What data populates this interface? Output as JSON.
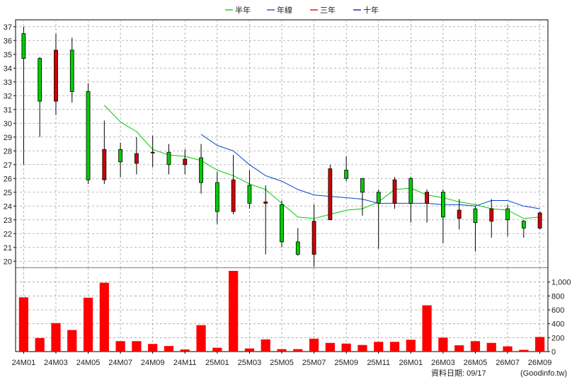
{
  "chart_data": {
    "type": "candlestick",
    "legend": [
      {
        "name": "半年",
        "color": "#00cc00"
      },
      {
        "name": "年線",
        "color": "#0044cc"
      },
      {
        "name": "三年",
        "color": "#cc0000"
      },
      {
        "name": "十年",
        "color": "#330099"
      }
    ],
    "x_tick_labels": [
      "24M01",
      "24M03",
      "24M05",
      "24M07",
      "24M09",
      "24M11",
      "25M01",
      "25M03",
      "25M05",
      "25M07",
      "25M09",
      "25M11",
      "26M01",
      "26M03",
      "26M05",
      "26M07",
      "26M09"
    ],
    "price_axis": {
      "ylim": [
        19.5,
        37.5
      ],
      "ticks": [
        20,
        21,
        22,
        23,
        24,
        25,
        26,
        27,
        28,
        29,
        30,
        31,
        32,
        33,
        34,
        35,
        36,
        37
      ]
    },
    "volume_axis": {
      "ylim": [
        0,
        1200
      ],
      "ticks": [
        0,
        200,
        400,
        600,
        800,
        1000
      ],
      "tick_labels": [
        "0",
        "200",
        "400",
        "600",
        "800",
        "1,000"
      ]
    },
    "candles": [
      {
        "x": "24M01",
        "open": 34.7,
        "high": 37.0,
        "low": 27.0,
        "close": 36.5,
        "color": "green"
      },
      {
        "x": "24M02",
        "open": 31.6,
        "high": 34.8,
        "low": 29.0,
        "close": 34.7,
        "color": "green"
      },
      {
        "x": "24M03",
        "open": 35.3,
        "high": 36.5,
        "low": 30.6,
        "close": 31.6,
        "color": "red"
      },
      {
        "x": "24M04",
        "open": 32.3,
        "high": 36.2,
        "low": 31.5,
        "close": 35.3,
        "color": "green"
      },
      {
        "x": "24M05",
        "open": 25.9,
        "high": 32.9,
        "low": 25.6,
        "close": 32.3,
        "color": "green"
      },
      {
        "x": "24M06",
        "open": 28.1,
        "high": 30.2,
        "low": 25.6,
        "close": 25.9,
        "color": "red"
      },
      {
        "x": "24M07",
        "open": 27.2,
        "high": 28.6,
        "low": 26.1,
        "close": 28.1,
        "color": "green"
      },
      {
        "x": "24M08",
        "open": 27.8,
        "high": 29.0,
        "low": 26.3,
        "close": 27.1,
        "color": "red"
      },
      {
        "x": "24M09",
        "open": 27.9,
        "high": 29.1,
        "low": 26.8,
        "close": 27.9,
        "color": "red"
      },
      {
        "x": "24M10",
        "open": 27.0,
        "high": 28.5,
        "low": 26.3,
        "close": 27.9,
        "color": "green"
      },
      {
        "x": "24M11",
        "open": 27.4,
        "high": 28.1,
        "low": 26.3,
        "close": 27.0,
        "color": "red"
      },
      {
        "x": "24M12",
        "open": 25.7,
        "high": 28.5,
        "low": 24.9,
        "close": 27.5,
        "color": "green"
      },
      {
        "x": "25M01",
        "open": 23.6,
        "high": 26.5,
        "low": 22.7,
        "close": 25.7,
        "color": "green"
      },
      {
        "x": "25M02",
        "open": 25.9,
        "high": 27.7,
        "low": 23.4,
        "close": 23.6,
        "color": "red"
      },
      {
        "x": "25M03",
        "open": 24.2,
        "high": 26.6,
        "low": 23.8,
        "close": 25.5,
        "color": "green"
      },
      {
        "x": "25M04",
        "open": 24.3,
        "high": 25.5,
        "low": 20.5,
        "close": 24.2,
        "color": "red"
      },
      {
        "x": "25M05",
        "open": 21.4,
        "high": 24.4,
        "low": 21.0,
        "close": 24.1,
        "color": "green"
      },
      {
        "x": "25M06",
        "open": 20.5,
        "high": 22.4,
        "low": 20.4,
        "close": 21.4,
        "color": "green"
      },
      {
        "x": "25M07",
        "open": 22.9,
        "high": 24.1,
        "low": 19.6,
        "close": 20.5,
        "color": "red"
      },
      {
        "x": "25M08",
        "open": 26.7,
        "high": 27.0,
        "low": 23.0,
        "close": 23.0,
        "color": "red"
      },
      {
        "x": "25M09",
        "open": 26.0,
        "high": 27.6,
        "low": 25.8,
        "close": 26.6,
        "color": "green"
      },
      {
        "x": "25M10",
        "open": 25.0,
        "high": 26.0,
        "low": 23.3,
        "close": 26.0,
        "color": "green"
      },
      {
        "x": "25M11",
        "open": 24.2,
        "high": 25.2,
        "low": 20.9,
        "close": 25.0,
        "color": "green"
      },
      {
        "x": "25M12",
        "open": 25.9,
        "high": 26.1,
        "low": 23.8,
        "close": 24.2,
        "color": "red"
      },
      {
        "x": "26M01",
        "open": 24.2,
        "high": 26.1,
        "low": 22.8,
        "close": 26.0,
        "color": "green"
      },
      {
        "x": "26M02",
        "open": 25.0,
        "high": 25.2,
        "low": 22.8,
        "close": 24.2,
        "color": "red"
      },
      {
        "x": "26M03",
        "open": 23.2,
        "high": 25.2,
        "low": 21.3,
        "close": 25.0,
        "color": "green"
      },
      {
        "x": "26M04",
        "open": 23.7,
        "high": 24.5,
        "low": 22.3,
        "close": 23.1,
        "color": "red"
      },
      {
        "x": "26M05",
        "open": 22.8,
        "high": 24.0,
        "low": 20.7,
        "close": 23.8,
        "color": "green"
      },
      {
        "x": "26M06",
        "open": 23.8,
        "high": 24.5,
        "low": 21.7,
        "close": 22.9,
        "color": "red"
      },
      {
        "x": "26M07",
        "open": 23.0,
        "high": 24.1,
        "low": 21.8,
        "close": 23.8,
        "color": "green"
      },
      {
        "x": "26M08",
        "open": 22.4,
        "high": 23.0,
        "low": 21.7,
        "close": 22.9,
        "color": "green"
      },
      {
        "x": "26M09",
        "open": 23.5,
        "high": 23.6,
        "low": 22.3,
        "close": 22.4,
        "color": "red"
      }
    ],
    "volume": [
      780,
      195,
      410,
      310,
      775,
      990,
      150,
      150,
      110,
      80,
      30,
      380,
      55,
      1160,
      45,
      175,
      35,
      35,
      185,
      125,
      115,
      95,
      140,
      140,
      170,
      665,
      200,
      90,
      150,
      125,
      75,
      25,
      210
    ],
    "series": [
      {
        "name": "半年",
        "color": "#00cc00",
        "values": [
          null,
          null,
          null,
          null,
          null,
          31.3,
          30.1,
          29.4,
          28.1,
          27.7,
          27.6,
          27.3,
          26.6,
          26.2,
          25.6,
          25.2,
          24.2,
          23.2,
          23.1,
          23.4,
          23.7,
          23.8,
          24.3,
          25.2,
          25.3,
          24.8,
          24.6,
          24.3,
          24.1,
          23.8,
          23.7,
          23.1,
          23.2
        ]
      },
      {
        "name": "年線",
        "color": "#0044cc",
        "values": [
          null,
          null,
          null,
          null,
          null,
          null,
          null,
          null,
          null,
          null,
          null,
          29.2,
          28.4,
          28.0,
          27.0,
          26.2,
          25.8,
          25.2,
          24.8,
          24.7,
          24.6,
          24.5,
          24.2,
          24.2,
          24.2,
          24.2,
          24.1,
          24.1,
          24.0,
          24.4,
          24.4,
          24.0,
          23.8
        ]
      }
    ]
  },
  "footer": {
    "date_label": "資料日期: 09/17",
    "source": "(Goodinfo.tw)"
  }
}
